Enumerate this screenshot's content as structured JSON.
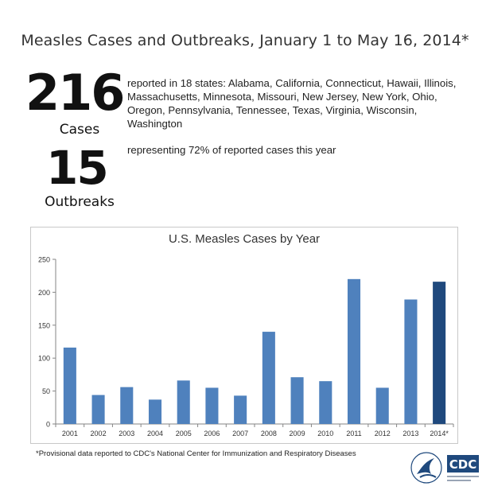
{
  "header": {
    "title": "Measles Cases and Outbreaks, January 1 to May 16, 2014*"
  },
  "stats": {
    "cases": {
      "number": "216",
      "label": "Cases",
      "description": "reported in 18 states: Alabama, California, Connecticut, Hawaii, Illinois, Massachusetts, Minnesota, Missouri, New Jersey, New York, Ohio, Oregon, Pennsylvania, Tennessee, Texas, Virginia, Wisconsin, Washington"
    },
    "outbreaks": {
      "number": "15",
      "label": "Outbreaks",
      "description": "representing 72% of reported cases this year"
    }
  },
  "footnote": "*Provisional data reported to CDC's National Center for Immunization and Respiratory Diseases",
  "logos": {
    "hhs_icon": "hhs-eagle-seal",
    "cdc_icon": "cdc-logo",
    "cdc_text": "CDC"
  },
  "colors": {
    "bar": "#4f81bd",
    "bar_highlight": "#1f497d",
    "axis": "#868686"
  },
  "chart_data": {
    "type": "bar",
    "title": "U.S. Measles Cases by Year",
    "xlabel": "",
    "ylabel": "",
    "categories": [
      "2001",
      "2002",
      "2003",
      "2004",
      "2005",
      "2006",
      "2007",
      "2008",
      "2009",
      "2010",
      "2011",
      "2012",
      "2013",
      "2014*"
    ],
    "values": [
      116,
      44,
      56,
      37,
      66,
      55,
      43,
      140,
      71,
      65,
      220,
      55,
      189,
      216
    ],
    "highlight_index": 13,
    "ylim": [
      0,
      250
    ],
    "yticks": [
      0,
      50,
      100,
      150,
      200,
      250
    ],
    "grid": false,
    "legend": "none"
  }
}
